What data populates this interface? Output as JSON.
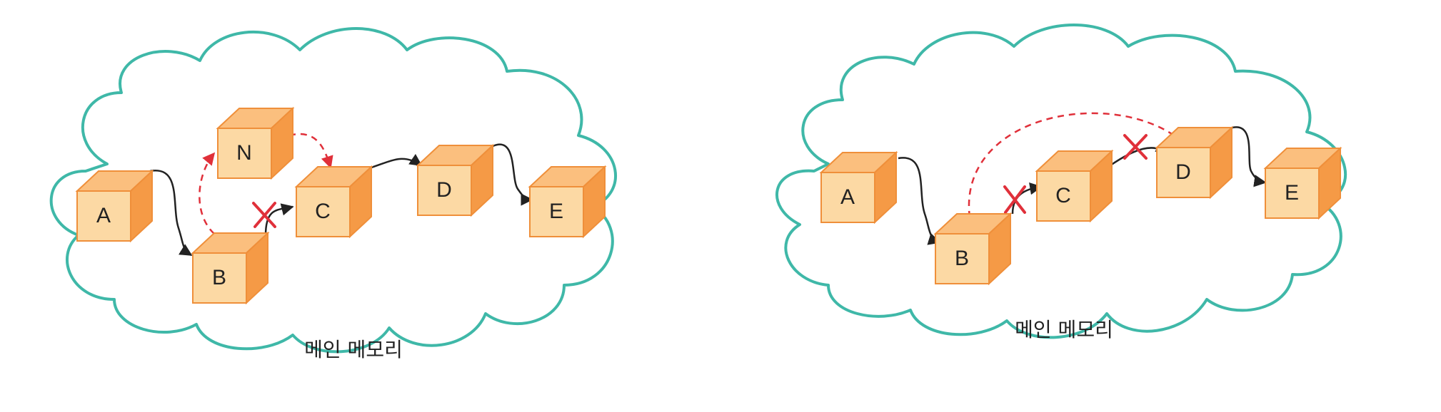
{
  "diagrams": [
    {
      "id": "insert",
      "caption": "메인 메모리",
      "nodes": [
        {
          "key": "A",
          "label": "A"
        },
        {
          "key": "N",
          "label": "N"
        },
        {
          "key": "B",
          "label": "B"
        },
        {
          "key": "C",
          "label": "C"
        },
        {
          "key": "D",
          "label": "D"
        },
        {
          "key": "E",
          "label": "E"
        }
      ]
    },
    {
      "id": "delete",
      "caption": "메인 메모리",
      "nodes": [
        {
          "key": "A",
          "label": "A"
        },
        {
          "key": "B",
          "label": "B"
        },
        {
          "key": "C",
          "label": "C"
        },
        {
          "key": "D",
          "label": "D"
        },
        {
          "key": "E",
          "label": "E"
        }
      ]
    }
  ],
  "colors": {
    "cloud_outline": "#3fb8a8",
    "box": "#f59a46",
    "new_link": "#e0303a",
    "old_link": "#222222"
  }
}
